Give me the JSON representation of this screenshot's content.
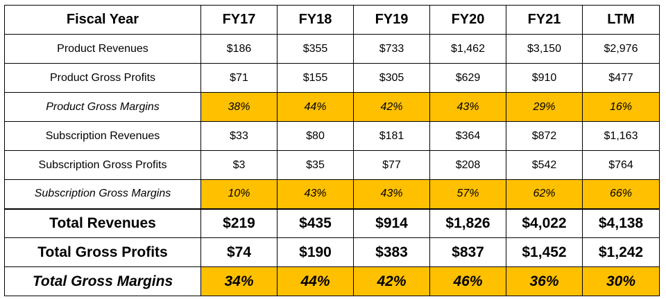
{
  "table": {
    "header": {
      "label": "Fiscal Year",
      "years": [
        "FY17",
        "FY18",
        "FY19",
        "FY20",
        "FY21",
        "LTM"
      ]
    },
    "rows": [
      {
        "label": "Product Revenues",
        "values": [
          "$186",
          "$355",
          "$733",
          "$1,462",
          "$3,150",
          "$2,976"
        ],
        "style": "normal"
      },
      {
        "label": "Product Gross Profits",
        "values": [
          "$71",
          "$155",
          "$305",
          "$629",
          "$910",
          "$477"
        ],
        "style": "normal"
      },
      {
        "label": "Product Gross Margins",
        "values": [
          "38%",
          "44%",
          "42%",
          "43%",
          "29%",
          "16%"
        ],
        "style": "margin"
      },
      {
        "label": "Subscription Revenues",
        "values": [
          "$33",
          "$80",
          "$181",
          "$364",
          "$872",
          "$1,163"
        ],
        "style": "normal"
      },
      {
        "label": "Subscription Gross Profits",
        "values": [
          "$3",
          "$35",
          "$77",
          "$208",
          "$542",
          "$764"
        ],
        "style": "normal"
      },
      {
        "label": "Subscription Gross Margins",
        "values": [
          "10%",
          "43%",
          "43%",
          "57%",
          "62%",
          "66%"
        ],
        "style": "margin"
      },
      {
        "label": "Total Revenues",
        "values": [
          "$219",
          "$435",
          "$914",
          "$1,826",
          "$4,022",
          "$4,138"
        ],
        "style": "total"
      },
      {
        "label": "Total Gross Profits",
        "values": [
          "$74",
          "$190",
          "$383",
          "$837",
          "$1,452",
          "$1,242"
        ],
        "style": "total"
      },
      {
        "label": "Total Gross Margins",
        "values": [
          "34%",
          "44%",
          "42%",
          "46%",
          "36%",
          "30%"
        ],
        "style": "total-margin"
      }
    ]
  },
  "colors": {
    "highlight": "#ffc000",
    "border": "#000000",
    "text": "#000000",
    "background": "#ffffff"
  }
}
